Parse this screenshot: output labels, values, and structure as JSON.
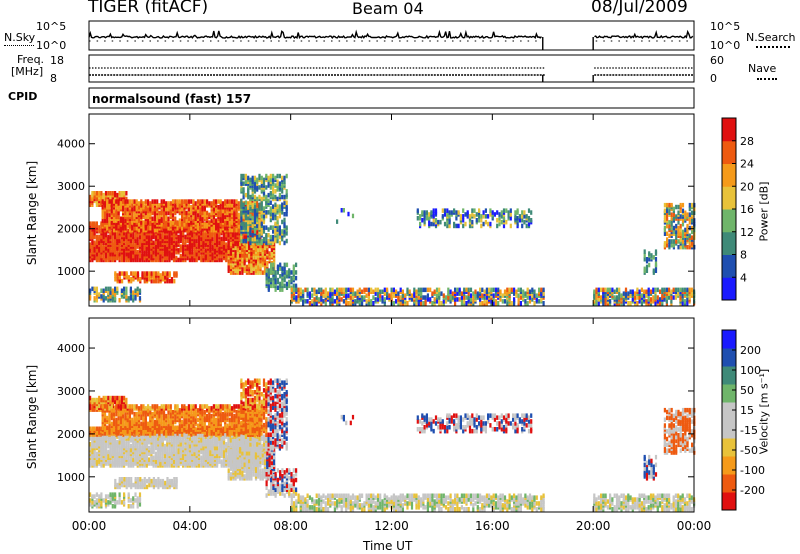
{
  "header": {
    "site": "TIGER (fitACF)",
    "beam": "Beam 04",
    "date": "08/Jul/2009"
  },
  "noise_panel": {
    "left_label": "N.Sky",
    "left_ticks": [
      "10^5",
      "10^0"
    ],
    "right_label": "N.Search",
    "right_ticks": [
      "10^5",
      "10^0"
    ]
  },
  "freq_panel": {
    "left_label_1": "Freq.",
    "left_label_2": "[MHz]",
    "left_ticks": [
      "18",
      "8"
    ],
    "right_label": "Nave",
    "right_ticks": [
      "60",
      "0"
    ],
    "cpid_label": "CPID",
    "mode": "normalsound (fast) 157"
  },
  "colors": {
    "power_scale": [
      "#1a1aff",
      "#1f4fb0",
      "#3f8a78",
      "#6fb56a",
      "#e8c23a",
      "#f59a1a",
      "#ee5a10",
      "#e01010"
    ],
    "velocity_scale": [
      "#1a1aff",
      "#1f4fb0",
      "#3f8a78",
      "#6fb56a",
      "#c6c6c6",
      "#c6c6c6",
      "#e8c23a",
      "#f59a1a",
      "#ee5a10",
      "#e01010"
    ]
  },
  "chart_data": [
    {
      "type": "heatmap",
      "title": "",
      "xlabel": "Time UT",
      "ylabel": "Slant Range [km]",
      "xlim": [
        "00:00",
        "00:00"
      ],
      "ylim": [
        180,
        4700
      ],
      "x_ticks": [
        "00:00",
        "04:00",
        "08:00",
        "12:00",
        "16:00",
        "20:00",
        "00:00"
      ],
      "y_ticks": [
        1000,
        2000,
        3000,
        4000
      ],
      "colorbar_label": "Power [dB]",
      "colorbar_ticks": [
        "4",
        "8",
        "12",
        "16",
        "20",
        "24",
        "28"
      ],
      "data_gaps": [
        [
          "18:00",
          "20:00"
        ]
      ]
    },
    {
      "type": "heatmap",
      "title": "",
      "xlabel": "Time UT",
      "ylabel": "Slant Range [km]",
      "xlim": [
        "00:00",
        "00:00"
      ],
      "ylim": [
        180,
        4700
      ],
      "x_ticks": [
        "00:00",
        "04:00",
        "08:00",
        "12:00",
        "16:00",
        "20:00",
        "00:00"
      ],
      "y_ticks": [
        1000,
        2000,
        3000,
        4000
      ],
      "colorbar_label": "Velocity [m s⁻¹]",
      "colorbar_ticks": [
        "200",
        "100",
        "50",
        "15",
        "-15",
        "-50",
        "-100",
        "-200"
      ],
      "data_gaps": [
        [
          "18:00",
          "20:00"
        ]
      ]
    }
  ]
}
